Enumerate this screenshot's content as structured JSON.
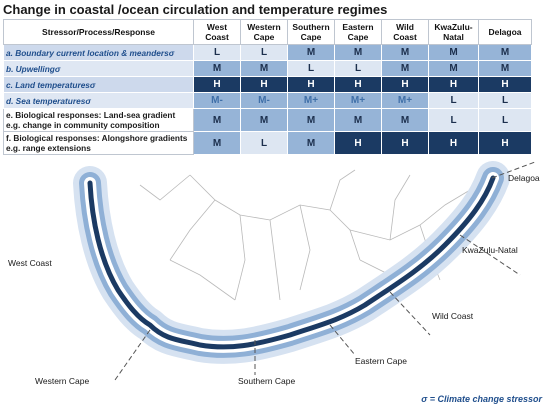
{
  "title": "Change in coastal /ocean circulation and temperature regimes",
  "header": {
    "stressor": "Stressor/Process/Response",
    "regions": [
      "West\nCoast",
      "Western\nCape",
      "Southern\nCape",
      "Eastern\nCape",
      "Wild\nCoast",
      "KwaZulu-\nNatal",
      "Delagoa"
    ]
  },
  "rows": [
    {
      "label": "a. Boundary current location & meandersσ",
      "style": "ital",
      "cells": [
        "L",
        "L",
        "M",
        "M",
        "M",
        "M",
        "M"
      ]
    },
    {
      "label": "b. Upwellingσ",
      "style": "ital",
      "cells": [
        "M",
        "M",
        "L",
        "L",
        "M",
        "M",
        "M"
      ]
    },
    {
      "label": "c. Land temperaturesσ",
      "style": "ital",
      "cells": [
        "H",
        "H",
        "H",
        "H",
        "H",
        "H",
        "H"
      ]
    },
    {
      "label": "d. Sea temperaturesσ",
      "style": "ital",
      "cells": [
        "M-",
        "M-",
        "M+",
        "M+",
        "M+",
        "L",
        "L"
      ]
    },
    {
      "label": "e. Biological responses: Land-sea gradient\ne.g. change in community composition",
      "style": "plain",
      "cells": [
        "M",
        "M",
        "M",
        "M",
        "M",
        "L",
        "L"
      ]
    },
    {
      "label": "f. Biological responses: Alongshore gradients\ne.g. range extensions",
      "style": "plain",
      "cells": [
        "M",
        "L",
        "M",
        "H",
        "H",
        "H",
        "H"
      ]
    }
  ],
  "map_labels": {
    "west_coast": "West Coast",
    "western_cape": "Western Cape",
    "southern_cape": "Southern Cape",
    "eastern_cape": "Eastern Cape",
    "wild_coast": "Wild Coast",
    "kwazulu_natal": "KwaZulu-Natal",
    "delagoa": "Delagoa"
  },
  "note": "σ = Climate change stressor",
  "colors": {
    "low": "#dde6f2",
    "medium": "#96b4d7",
    "high": "#1b3a63",
    "coast_band_dark": "#1b3a63",
    "coast_band_mid": "#8fb0d6",
    "coast_band_light": "#d6e2f1"
  }
}
